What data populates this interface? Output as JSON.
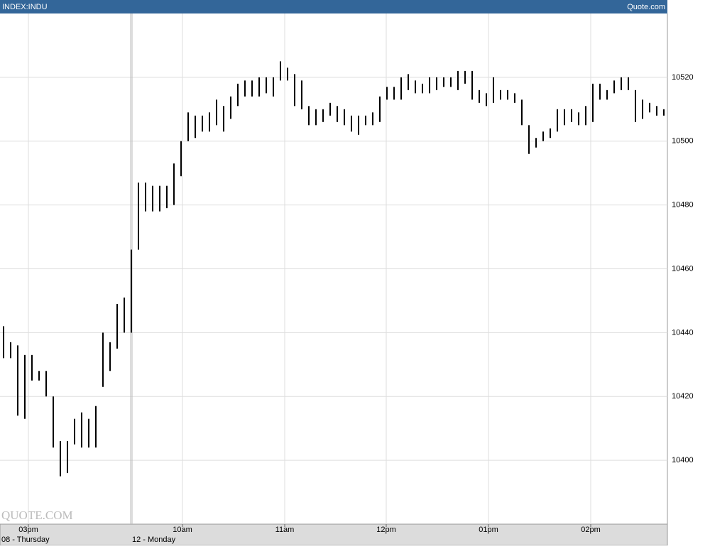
{
  "chart_data": {
    "type": "ohlc",
    "header": {
      "left": "INDEX:INDU",
      "right": "Quote.com"
    },
    "watermark": "QUOTE.COM",
    "color": "#000000",
    "grid": true,
    "xlim": [
      0,
      94
    ],
    "xticks": [
      {
        "value": 4,
        "label": "03pm"
      },
      {
        "value": 25.7,
        "label": "10am"
      },
      {
        "value": 40.1,
        "label": "11am"
      },
      {
        "value": 54.4,
        "label": "12pm"
      },
      {
        "value": 68.8,
        "label": "01pm"
      },
      {
        "value": 83.2,
        "label": "02pm"
      }
    ],
    "days": [
      {
        "value": 0,
        "label": "08 - Thursday"
      },
      {
        "value": 18.4,
        "label": "12 - Monday"
      }
    ],
    "ylim": [
      10380,
      10540
    ],
    "yticks": [
      10400,
      10420,
      10440,
      10460,
      10480,
      10500,
      10520
    ],
    "high": [
      10442,
      10437,
      10436,
      10433,
      10433,
      10428,
      10428,
      10420,
      10406,
      10406,
      10413,
      10415,
      10413,
      10417,
      10440,
      10437,
      10449,
      10451,
      10466,
      10487,
      10487,
      10486,
      10486,
      10486,
      10493,
      10500,
      10509,
      10508,
      10508,
      10509,
      10513,
      10511,
      10514,
      10518,
      10519,
      10519,
      10520,
      10520,
      10520,
      10525,
      10523,
      10521,
      10519,
      10511,
      10510,
      10510,
      10512,
      10511,
      10510,
      10508,
      10508,
      10508,
      10509,
      10514,
      10517,
      10517,
      10520,
      10521,
      10519,
      10518,
      10520,
      10520,
      10520,
      10520,
      10522,
      10522,
      10522,
      10516,
      10515,
      10520,
      10516,
      10516,
      10515,
      10513,
      10505,
      10501,
      10503,
      10504,
      10510,
      10510,
      10510,
      10509,
      10511,
      10518,
      10518,
      10516,
      10519,
      10520,
      10520,
      10516,
      10513,
      10512,
      10511,
      10510
    ],
    "low": [
      10432,
      10432,
      10414,
      10413,
      10425,
      10425,
      10420,
      10404,
      10395,
      10396,
      10405,
      10404,
      10404,
      10404,
      10423,
      10428,
      10435,
      10440,
      10440,
      10466,
      10478,
      10478,
      10478,
      10479,
      10480,
      10489,
      10500,
      10501,
      10503,
      10503,
      10505,
      10503,
      10507,
      10511,
      10514,
      10514,
      10514,
      10515,
      10514,
      10519,
      10519,
      10511,
      10510,
      10505,
      10505,
      10506,
      10508,
      10506,
      10505,
      10503,
      10502,
      10505,
      10505,
      10506,
      10513,
      10513,
      10513,
      10516,
      10515,
      10515,
      10515,
      10516,
      10517,
      10517,
      10516,
      10518,
      10513,
      10512,
      10511,
      10512,
      10513,
      10513,
      10512,
      10505,
      10496,
      10498,
      10500,
      10501,
      10503,
      10505,
      10506,
      10505,
      10505,
      10506,
      10513,
      10513,
      10515,
      10516,
      10516,
      10506,
      10507,
      10509,
      10508,
      10508
    ]
  }
}
